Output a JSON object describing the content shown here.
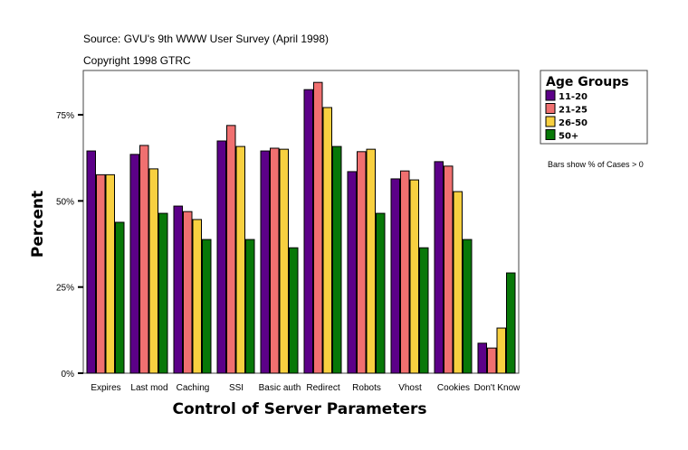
{
  "chart_data": {
    "type": "bar",
    "source": "Source: GVU's 9th WWW User Survey (April 1998)",
    "copyright": "Copyright 1998 GTRC",
    "xlabel": "Control of Server Parameters",
    "ylabel": "Percent",
    "ylim": [
      0,
      100
    ],
    "yticks": [
      0,
      25,
      50,
      75
    ],
    "ytick_labels": [
      "0%",
      "25%",
      "50%",
      "75%"
    ],
    "grid": false,
    "legend_title": "Age Groups",
    "legend_position": "right",
    "note": "Bars show % of Cases > 0",
    "categories": [
      "Expires",
      "Last mod",
      "Caching",
      "SSI",
      "Basic auth",
      "Redirect",
      "Robots",
      "Vhost",
      "Cookies",
      "Don't Know"
    ],
    "series": [
      {
        "name": "11-20",
        "color": "#5c0088",
        "values": [
          64.5,
          63.5,
          48.5,
          67.4,
          64.5,
          82.3,
          58.5,
          56.4,
          61.4,
          8.7
        ]
      },
      {
        "name": "21-25",
        "color": "#f07070",
        "values": [
          57.6,
          66.1,
          46.9,
          71.9,
          65.3,
          84.4,
          64.3,
          58.7,
          60.1,
          7.3
        ]
      },
      {
        "name": "26-50",
        "color": "#f8d040",
        "values": [
          57.6,
          59.3,
          44.6,
          65.8,
          65.0,
          77.1,
          65.0,
          56.1,
          52.7,
          13.1
        ]
      },
      {
        "name": "50+",
        "color": "#087808",
        "values": [
          43.8,
          46.4,
          38.8,
          38.8,
          36.4,
          65.8,
          46.4,
          36.4,
          38.8,
          29.1
        ]
      }
    ]
  }
}
